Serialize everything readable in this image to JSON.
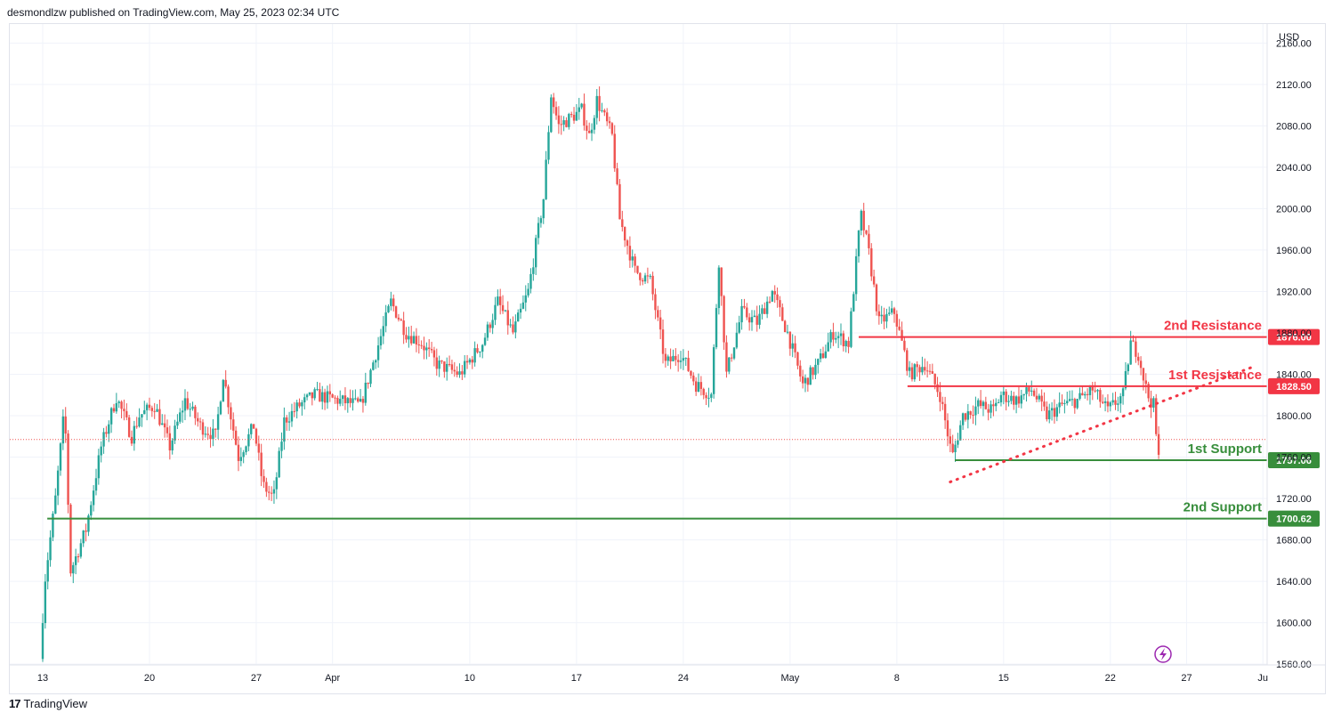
{
  "header": {
    "text": "desmondlzw published on TradingView.com, May 25, 2023 02:34 UTC"
  },
  "footer": {
    "brand": "TradingView",
    "logo_glyph": "17"
  },
  "colors": {
    "up": "#26a69a",
    "down": "#ef5350",
    "resistance": "#f23645",
    "support": "#388e3c",
    "grid": "#f0f3fa",
    "axis": "#131722",
    "price_line": "#ef5350",
    "flash": "#9c27b0"
  },
  "chart_data": {
    "type": "candlestick",
    "currency": "USD",
    "ylim": [
      1560,
      2160
    ],
    "y_ticks": [
      1560,
      1600,
      1640,
      1680,
      1720,
      1760,
      1800,
      1840,
      1880,
      1920,
      1960,
      2000,
      2040,
      2080,
      2120,
      2160
    ],
    "y_tick_labels": [
      "1560.00",
      "1600.00",
      "1640.00",
      "1680.00",
      "1720.00",
      "1760.00",
      "1800.00",
      "1840.00",
      "1880.00",
      "1920.00",
      "1960.00",
      "2000.00",
      "2040.00",
      "2080.00",
      "2120.00",
      "2160.00"
    ],
    "x_ticks": [
      {
        "label": "13",
        "day": 0
      },
      {
        "label": "20",
        "day": 7
      },
      {
        "label": "27",
        "day": 14
      },
      {
        "label": "Apr",
        "day": 19
      },
      {
        "label": "10",
        "day": 28
      },
      {
        "label": "17",
        "day": 35
      },
      {
        "label": "24",
        "day": 42
      },
      {
        "label": "May",
        "day": 49
      },
      {
        "label": "8",
        "day": 56
      },
      {
        "label": "15",
        "day": 63
      },
      {
        "label": "22",
        "day": 70
      },
      {
        "label": "27",
        "day": 75
      },
      {
        "label": "Ju",
        "day": 80
      }
    ],
    "price_anchors": [
      [
        0.0,
        1565
      ],
      [
        0.3,
        1640
      ],
      [
        1.0,
        1720
      ],
      [
        1.6,
        1808
      ],
      [
        2.0,
        1650
      ],
      [
        3.0,
        1690
      ],
      [
        4.0,
        1770
      ],
      [
        5.0,
        1818
      ],
      [
        6.0,
        1780
      ],
      [
        6.5,
        1800
      ],
      [
        7.5,
        1810
      ],
      [
        8.5,
        1770
      ],
      [
        9.5,
        1815
      ],
      [
        10.5,
        1790
      ],
      [
        11.5,
        1780
      ],
      [
        12.0,
        1840
      ],
      [
        13.0,
        1760
      ],
      [
        14.0,
        1790
      ],
      [
        14.6,
        1733
      ],
      [
        15.3,
        1720
      ],
      [
        16.0,
        1795
      ],
      [
        17.0,
        1810
      ],
      [
        18.0,
        1820
      ],
      [
        19.5,
        1815
      ],
      [
        21.0,
        1810
      ],
      [
        22.0,
        1860
      ],
      [
        23.0,
        1910
      ],
      [
        24.0,
        1880
      ],
      [
        25.0,
        1870
      ],
      [
        26.0,
        1850
      ],
      [
        27.5,
        1840
      ],
      [
        29.0,
        1870
      ],
      [
        30.0,
        1910
      ],
      [
        31.0,
        1880
      ],
      [
        32.0,
        1920
      ],
      [
        33.0,
        2010
      ],
      [
        33.5,
        2110
      ],
      [
        34.0,
        2080
      ],
      [
        35.5,
        2095
      ],
      [
        36.0,
        2070
      ],
      [
        36.5,
        2105
      ],
      [
        37.5,
        2070
      ],
      [
        38.0,
        1990
      ],
      [
        39.0,
        1940
      ],
      [
        40.0,
        1930
      ],
      [
        41.0,
        1850
      ],
      [
        42.0,
        1860
      ],
      [
        43.0,
        1830
      ],
      [
        44.0,
        1820
      ],
      [
        44.5,
        1950
      ],
      [
        45.0,
        1840
      ],
      [
        46.0,
        1900
      ],
      [
        47.0,
        1890
      ],
      [
        48.0,
        1920
      ],
      [
        49.0,
        1880
      ],
      [
        50.0,
        1830
      ],
      [
        51.0,
        1850
      ],
      [
        52.0,
        1880
      ],
      [
        53.0,
        1870
      ],
      [
        53.8,
        1995
      ],
      [
        54.3,
        1960
      ],
      [
        55.0,
        1890
      ],
      [
        56.0,
        1900
      ],
      [
        56.5,
        1870
      ],
      [
        57.0,
        1840
      ],
      [
        58.0,
        1850
      ],
      [
        59.0,
        1820
      ],
      [
        59.8,
        1760
      ],
      [
        60.5,
        1800
      ],
      [
        61.5,
        1810
      ],
      [
        62.5,
        1805
      ],
      [
        63.0,
        1820
      ],
      [
        64.0,
        1815
      ],
      [
        65.0,
        1825
      ],
      [
        66.0,
        1800
      ],
      [
        67.0,
        1810
      ],
      [
        68.0,
        1815
      ],
      [
        69.0,
        1825
      ],
      [
        70.0,
        1805
      ],
      [
        71.0,
        1820
      ],
      [
        71.5,
        1870
      ],
      [
        72.0,
        1860
      ],
      [
        72.6,
        1820
      ],
      [
        73.0,
        1810
      ],
      [
        73.3,
        1758
      ]
    ],
    "last_price": 1777,
    "levels": [
      {
        "label": "2nd Resistance",
        "value": 1876.0,
        "tag": "1876.00",
        "kind": "resistance",
        "from_day": 53.5
      },
      {
        "label": "1st Resistance",
        "value": 1828.5,
        "tag": "1828.50",
        "kind": "resistance",
        "from_day": 56.7
      },
      {
        "label": "1st Support",
        "value": 1757.06,
        "tag": "1757.06",
        "kind": "support",
        "from_day": 59.8
      },
      {
        "label": "2nd Support",
        "value": 1700.62,
        "tag": "1700.62",
        "kind": "support",
        "from_day": 0.3
      }
    ],
    "trendline": {
      "style": "dotted",
      "from": [
        59.5,
        1736
      ],
      "to": [
        79.5,
        1848
      ]
    }
  }
}
